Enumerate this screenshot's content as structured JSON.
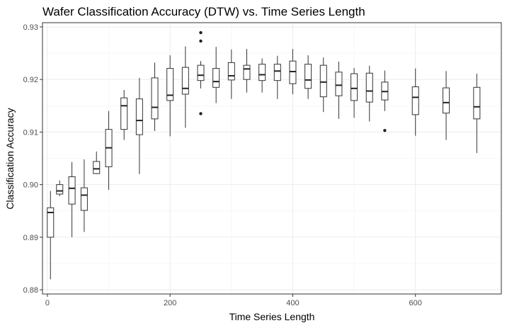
{
  "chart_data": {
    "type": "boxplot",
    "title": "Wafer Classification Accuracy (DTW) vs. Time Series Length",
    "xlabel": "Time Series Length",
    "ylabel": "Classification Accuracy",
    "xlim": [
      -8,
      740
    ],
    "ylim": [
      0.8792,
      0.9308
    ],
    "xticks": [
      0,
      200,
      400,
      600
    ],
    "yticks": [
      0.88,
      0.89,
      0.9,
      0.91,
      0.92,
      0.93
    ],
    "ytick_labels": [
      "0.88",
      "0.89",
      "0.90",
      "0.91",
      "0.92",
      "0.93"
    ],
    "grid": true,
    "boxes": [
      {
        "x": 5,
        "min": 0.882,
        "q1": 0.89,
        "median": 0.8947,
        "q3": 0.8956,
        "max": 0.8988,
        "outliers": []
      },
      {
        "x": 20,
        "min": 0.8978,
        "q1": 0.8982,
        "median": 0.8988,
        "q3": 0.9,
        "max": 0.9008,
        "outliers": []
      },
      {
        "x": 40,
        "min": 0.89,
        "q1": 0.8963,
        "median": 0.8993,
        "q3": 0.9015,
        "max": 0.9043,
        "outliers": []
      },
      {
        "x": 60,
        "min": 0.891,
        "q1": 0.8951,
        "median": 0.898,
        "q3": 0.8994,
        "max": 0.9048,
        "outliers": []
      },
      {
        "x": 80,
        "min": 0.902,
        "q1": 0.9021,
        "median": 0.903,
        "q3": 0.9044,
        "max": 0.9063,
        "outliers": []
      },
      {
        "x": 100,
        "min": 0.899,
        "q1": 0.9034,
        "median": 0.907,
        "q3": 0.9105,
        "max": 0.914,
        "outliers": []
      },
      {
        "x": 125,
        "min": 0.9085,
        "q1": 0.9105,
        "median": 0.915,
        "q3": 0.9165,
        "max": 0.918,
        "outliers": []
      },
      {
        "x": 150,
        "min": 0.902,
        "q1": 0.9095,
        "median": 0.9122,
        "q3": 0.9163,
        "max": 0.9203,
        "outliers": []
      },
      {
        "x": 175,
        "min": 0.9102,
        "q1": 0.9125,
        "median": 0.9147,
        "q3": 0.9203,
        "max": 0.9232,
        "outliers": []
      },
      {
        "x": 200,
        "min": 0.9092,
        "q1": 0.916,
        "median": 0.917,
        "q3": 0.9221,
        "max": 0.9246,
        "outliers": []
      },
      {
        "x": 225,
        "min": 0.9108,
        "q1": 0.9172,
        "median": 0.9183,
        "q3": 0.9223,
        "max": 0.9263,
        "outliers": []
      },
      {
        "x": 250,
        "min": 0.9183,
        "q1": 0.9198,
        "median": 0.9208,
        "q3": 0.9227,
        "max": 0.9235,
        "outliers": [
          0.9289,
          0.9273,
          0.9135
        ]
      },
      {
        "x": 275,
        "min": 0.9155,
        "q1": 0.9185,
        "median": 0.9196,
        "q3": 0.9221,
        "max": 0.9262,
        "outliers": []
      },
      {
        "x": 300,
        "min": 0.9163,
        "q1": 0.9199,
        "median": 0.9207,
        "q3": 0.9232,
        "max": 0.9257,
        "outliers": []
      },
      {
        "x": 325,
        "min": 0.9175,
        "q1": 0.92,
        "median": 0.922,
        "q3": 0.9227,
        "max": 0.9258,
        "outliers": []
      },
      {
        "x": 350,
        "min": 0.9175,
        "q1": 0.9198,
        "median": 0.9209,
        "q3": 0.9229,
        "max": 0.924,
        "outliers": []
      },
      {
        "x": 375,
        "min": 0.9163,
        "q1": 0.9198,
        "median": 0.9216,
        "q3": 0.9229,
        "max": 0.9245,
        "outliers": []
      },
      {
        "x": 400,
        "min": 0.9172,
        "q1": 0.9192,
        "median": 0.9215,
        "q3": 0.9235,
        "max": 0.9258,
        "outliers": []
      },
      {
        "x": 425,
        "min": 0.9163,
        "q1": 0.9183,
        "median": 0.9199,
        "q3": 0.9229,
        "max": 0.9246,
        "outliers": []
      },
      {
        "x": 450,
        "min": 0.9138,
        "q1": 0.9167,
        "median": 0.9195,
        "q3": 0.9227,
        "max": 0.9242,
        "outliers": []
      },
      {
        "x": 475,
        "min": 0.9125,
        "q1": 0.9169,
        "median": 0.9189,
        "q3": 0.9214,
        "max": 0.9234,
        "outliers": []
      },
      {
        "x": 500,
        "min": 0.9127,
        "q1": 0.916,
        "median": 0.9183,
        "q3": 0.9211,
        "max": 0.9222,
        "outliers": []
      },
      {
        "x": 525,
        "min": 0.912,
        "q1": 0.9157,
        "median": 0.9178,
        "q3": 0.9212,
        "max": 0.9226,
        "outliers": []
      },
      {
        "x": 550,
        "min": 0.914,
        "q1": 0.9161,
        "median": 0.9177,
        "q3": 0.9195,
        "max": 0.9217,
        "outliers": [
          0.9103
        ]
      },
      {
        "x": 600,
        "min": 0.9093,
        "q1": 0.9133,
        "median": 0.9166,
        "q3": 0.9186,
        "max": 0.9221,
        "outliers": []
      },
      {
        "x": 650,
        "min": 0.9085,
        "q1": 0.9136,
        "median": 0.9156,
        "q3": 0.9184,
        "max": 0.9216,
        "outliers": []
      },
      {
        "x": 700,
        "min": 0.906,
        "q1": 0.9125,
        "median": 0.9148,
        "q3": 0.9185,
        "max": 0.9211,
        "outliers": []
      }
    ]
  }
}
